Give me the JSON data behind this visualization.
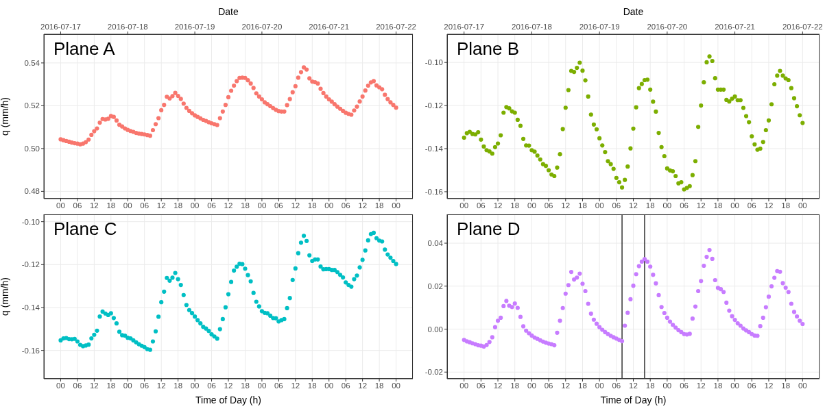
{
  "chart_data": [
    {
      "type": "scatter",
      "title": "Plane A",
      "ylabel": "q (mm/h)",
      "x2label": "Date",
      "marker": "circle",
      "grid": true,
      "x2lim": [
        "2016-07-16T18:00",
        "2016-07-22T06:00"
      ],
      "x2ticks": [
        "2016-07-17",
        "2016-07-18",
        "2016-07-19",
        "2016-07-20",
        "2016-07-21",
        "2016-07-22"
      ],
      "xlim": [
        -6,
        126
      ],
      "xticks": [
        {
          "value": 0,
          "label": "00"
        },
        {
          "value": 6,
          "label": "06"
        },
        {
          "value": 12,
          "label": "12"
        },
        {
          "value": 18,
          "label": "18"
        },
        {
          "value": 24,
          "label": "00"
        },
        {
          "value": 30,
          "label": "06"
        },
        {
          "value": 36,
          "label": "12"
        },
        {
          "value": 42,
          "label": "18"
        },
        {
          "value": 48,
          "label": "00"
        },
        {
          "value": 54,
          "label": "06"
        },
        {
          "value": 60,
          "label": "12"
        },
        {
          "value": 66,
          "label": "18"
        },
        {
          "value": 72,
          "label": "00"
        },
        {
          "value": 78,
          "label": "06"
        },
        {
          "value": 84,
          "label": "12"
        },
        {
          "value": 90,
          "label": "18"
        },
        {
          "value": 96,
          "label": "00"
        },
        {
          "value": 102,
          "label": "06"
        },
        {
          "value": 108,
          "label": "12"
        },
        {
          "value": 114,
          "label": "18"
        },
        {
          "value": 120,
          "label": "00"
        }
      ],
      "ylim": [
        0.4766,
        0.5534
      ],
      "yticks": [
        0.48,
        {
          "value": 0.5,
          "label": "0.50"
        },
        0.52,
        0.54
      ],
      "x": [
        0,
        1,
        2,
        3,
        4,
        5,
        6,
        7,
        8,
        9,
        10,
        11,
        12,
        13,
        14,
        15,
        16,
        17,
        18,
        19,
        20,
        21,
        22,
        23,
        24,
        25,
        26,
        27,
        28,
        29,
        30,
        31,
        32,
        33,
        34,
        35,
        36,
        37,
        38,
        39,
        40,
        41,
        42,
        43,
        44,
        45,
        46,
        47,
        48,
        49,
        50,
        51,
        52,
        53,
        54,
        55,
        56,
        57,
        58,
        59,
        60,
        61,
        62,
        63,
        64,
        65,
        66,
        67,
        68,
        69,
        70,
        71,
        72,
        73,
        74,
        75,
        76,
        77,
        78,
        79,
        80,
        81,
        82,
        83,
        84,
        85,
        86,
        87,
        88,
        89,
        90,
        91,
        92,
        93,
        94,
        95,
        96,
        97,
        98,
        99,
        100,
        101,
        102,
        103,
        104,
        105,
        106,
        107,
        108,
        109,
        110,
        111,
        112,
        113,
        114,
        115,
        116,
        117,
        118,
        119,
        120
      ],
      "series": [
        {
          "color": "#f8766d",
          "values": [
            0.5043,
            0.5039,
            0.5035,
            0.5032,
            0.5028,
            0.5025,
            0.5023,
            0.502,
            0.5023,
            0.503,
            0.5042,
            0.5064,
            0.5081,
            0.5094,
            0.5121,
            0.5138,
            0.5136,
            0.5139,
            0.5152,
            0.5148,
            0.5131,
            0.5111,
            0.5103,
            0.5094,
            0.5087,
            0.5082,
            0.5078,
            0.5073,
            0.507,
            0.5068,
            0.5066,
            0.5063,
            0.506,
            0.5086,
            0.5114,
            0.5142,
            0.5179,
            0.5204,
            0.5242,
            0.5234,
            0.5245,
            0.526,
            0.5246,
            0.5232,
            0.521,
            0.519,
            0.5176,
            0.5165,
            0.5155,
            0.5148,
            0.5141,
            0.5134,
            0.5129,
            0.5123,
            0.5118,
            0.5114,
            0.511,
            0.5142,
            0.5173,
            0.5204,
            0.524,
            0.527,
            0.5294,
            0.5315,
            0.533,
            0.5331,
            0.533,
            0.5319,
            0.5304,
            0.5283,
            0.5258,
            0.5243,
            0.523,
            0.5216,
            0.5207,
            0.5198,
            0.5189,
            0.5181,
            0.5175,
            0.5173,
            0.5173,
            0.5203,
            0.5231,
            0.5263,
            0.5291,
            0.5331,
            0.5357,
            0.5379,
            0.5369,
            0.5328,
            0.5313,
            0.531,
            0.5304,
            0.5279,
            0.5259,
            0.5243,
            0.523,
            0.5219,
            0.5207,
            0.5196,
            0.5186,
            0.5176,
            0.5167,
            0.5162,
            0.5158,
            0.5178,
            0.5196,
            0.522,
            0.5243,
            0.5271,
            0.5294,
            0.5309,
            0.5315,
            0.5295,
            0.5286,
            0.5277,
            0.5251,
            0.5231,
            0.5216,
            0.5204,
            0.5191
          ]
        }
      ]
    },
    {
      "type": "scatter",
      "title": "Plane B",
      "x2label": "Date",
      "marker": "circle",
      "grid": true,
      "x2lim": [
        "2016-07-16T18:00",
        "2016-07-22T06:00"
      ],
      "x2ticks": [
        "2016-07-17",
        "2016-07-18",
        "2016-07-19",
        "2016-07-20",
        "2016-07-21",
        "2016-07-22"
      ],
      "xlim": [
        -6,
        126
      ],
      "xticks": [
        {
          "value": 0,
          "label": "00"
        },
        {
          "value": 6,
          "label": "06"
        },
        {
          "value": 12,
          "label": "12"
        },
        {
          "value": 18,
          "label": "18"
        },
        {
          "value": 24,
          "label": "00"
        },
        {
          "value": 30,
          "label": "06"
        },
        {
          "value": 36,
          "label": "12"
        },
        {
          "value": 42,
          "label": "18"
        },
        {
          "value": 48,
          "label": "00"
        },
        {
          "value": 54,
          "label": "06"
        },
        {
          "value": 60,
          "label": "12"
        },
        {
          "value": 66,
          "label": "18"
        },
        {
          "value": 72,
          "label": "00"
        },
        {
          "value": 78,
          "label": "06"
        },
        {
          "value": 84,
          "label": "12"
        },
        {
          "value": 90,
          "label": "18"
        },
        {
          "value": 96,
          "label": "00"
        },
        {
          "value": 102,
          "label": "06"
        },
        {
          "value": 108,
          "label": "12"
        },
        {
          "value": 114,
          "label": "18"
        },
        {
          "value": 120,
          "label": "00"
        }
      ],
      "ylim": [
        -0.1632,
        -0.0869
      ],
      "yticks": [
        -0.16,
        -0.14,
        -0.12,
        {
          "value": -0.1,
          "label": "-0.10"
        }
      ],
      "x": [
        0,
        1,
        2,
        3,
        4,
        5,
        6,
        7,
        8,
        9,
        10,
        11,
        12,
        13,
        14,
        15,
        16,
        17,
        18,
        19,
        20,
        21,
        22,
        23,
        24,
        25,
        26,
        27,
        28,
        29,
        30,
        31,
        32,
        33,
        34,
        35,
        36,
        37,
        38,
        39,
        40,
        41,
        42,
        43,
        44,
        45,
        46,
        47,
        48,
        49,
        50,
        51,
        52,
        53,
        54,
        55,
        56,
        57,
        58,
        59,
        60,
        61,
        62,
        63,
        64,
        65,
        66,
        67,
        68,
        69,
        70,
        71,
        72,
        73,
        74,
        75,
        76,
        77,
        78,
        79,
        80,
        81,
        82,
        83,
        84,
        85,
        86,
        87,
        88,
        89,
        90,
        91,
        92,
        93,
        94,
        95,
        96,
        97,
        98,
        99,
        100,
        101,
        102,
        103,
        104,
        105,
        106,
        107,
        108,
        109,
        110,
        111,
        112,
        113,
        114,
        115,
        116,
        117,
        118,
        119,
        120
      ],
      "series": [
        {
          "color": "#7cae00",
          "values": [
            -0.1349,
            -0.1328,
            -0.1322,
            -0.1332,
            -0.1334,
            -0.1324,
            -0.1358,
            -0.139,
            -0.1407,
            -0.1413,
            -0.1423,
            -0.1393,
            -0.1376,
            -0.1338,
            -0.1233,
            -0.1207,
            -0.1213,
            -0.1227,
            -0.1233,
            -0.1266,
            -0.1294,
            -0.1355,
            -0.1385,
            -0.1386,
            -0.1407,
            -0.1414,
            -0.1432,
            -0.145,
            -0.1472,
            -0.148,
            -0.15,
            -0.152,
            -0.1527,
            -0.1488,
            -0.1426,
            -0.1309,
            -0.121,
            -0.1128,
            -0.1039,
            -0.1044,
            -0.1025,
            -0.1001,
            -0.1038,
            -0.1083,
            -0.1158,
            -0.1242,
            -0.1288,
            -0.131,
            -0.1352,
            -0.1385,
            -0.1416,
            -0.1458,
            -0.1472,
            -0.1494,
            -0.1536,
            -0.1556,
            -0.158,
            -0.1545,
            -0.1483,
            -0.1399,
            -0.1307,
            -0.1208,
            -0.1119,
            -0.11,
            -0.1082,
            -0.108,
            -0.1126,
            -0.1182,
            -0.1228,
            -0.1327,
            -0.1393,
            -0.1435,
            -0.1492,
            -0.1501,
            -0.1505,
            -0.1527,
            -0.1561,
            -0.1556,
            -0.1589,
            -0.1582,
            -0.1574,
            -0.1523,
            -0.1458,
            -0.1299,
            -0.12,
            -0.1092,
            -0.0999,
            -0.0972,
            -0.0993,
            -0.1073,
            -0.1126,
            -0.1126,
            -0.1126,
            -0.1174,
            -0.1181,
            -0.1168,
            -0.1158,
            -0.1175,
            -0.1175,
            -0.1211,
            -0.1249,
            -0.1277,
            -0.1343,
            -0.138,
            -0.1405,
            -0.14,
            -0.1369,
            -0.1314,
            -0.1269,
            -0.1194,
            -0.1101,
            -0.1061,
            -0.1039,
            -0.1061,
            -0.1074,
            -0.1082,
            -0.1119,
            -0.1166,
            -0.1203,
            -0.1245,
            -0.1281
          ]
        }
      ]
    },
    {
      "type": "scatter",
      "title": "Plane C",
      "xlabel": "Time of Day (h)",
      "ylabel": "q (mm/h)",
      "marker": "circle",
      "grid": true,
      "xlim": [
        -6,
        126
      ],
      "xticks": [
        {
          "value": 0,
          "label": "00"
        },
        {
          "value": 6,
          "label": "06"
        },
        {
          "value": 12,
          "label": "12"
        },
        {
          "value": 18,
          "label": "18"
        },
        {
          "value": 24,
          "label": "00"
        },
        {
          "value": 30,
          "label": "06"
        },
        {
          "value": 36,
          "label": "12"
        },
        {
          "value": 42,
          "label": "18"
        },
        {
          "value": 48,
          "label": "00"
        },
        {
          "value": 54,
          "label": "06"
        },
        {
          "value": 60,
          "label": "12"
        },
        {
          "value": 66,
          "label": "18"
        },
        {
          "value": 72,
          "label": "00"
        },
        {
          "value": 78,
          "label": "06"
        },
        {
          "value": 84,
          "label": "12"
        },
        {
          "value": 90,
          "label": "18"
        },
        {
          "value": 96,
          "label": "00"
        },
        {
          "value": 102,
          "label": "06"
        },
        {
          "value": 108,
          "label": "12"
        },
        {
          "value": 114,
          "label": "18"
        },
        {
          "value": 120,
          "label": "00"
        }
      ],
      "ylim": [
        -0.1732,
        -0.0966
      ],
      "yticks": [
        -0.16,
        -0.14,
        -0.12,
        {
          "value": -0.1,
          "label": "-0.10"
        }
      ],
      "x": [
        0,
        1,
        2,
        3,
        4,
        5,
        6,
        7,
        8,
        9,
        10,
        11,
        12,
        13,
        14,
        15,
        16,
        17,
        18,
        19,
        20,
        21,
        22,
        23,
        24,
        25,
        26,
        27,
        28,
        29,
        30,
        31,
        32,
        33,
        34,
        35,
        36,
        37,
        38,
        39,
        40,
        41,
        42,
        43,
        44,
        45,
        46,
        47,
        48,
        49,
        50,
        51,
        52,
        53,
        54,
        55,
        56,
        57,
        58,
        59,
        60,
        61,
        62,
        63,
        64,
        65,
        66,
        67,
        68,
        69,
        70,
        71,
        72,
        73,
        74,
        75,
        76,
        77,
        78,
        79,
        80,
        81,
        82,
        83,
        84,
        85,
        86,
        87,
        88,
        89,
        90,
        91,
        92,
        93,
        94,
        95,
        96,
        97,
        98,
        99,
        100,
        101,
        102,
        103,
        104,
        105,
        106,
        107,
        108,
        109,
        110,
        111,
        112,
        113,
        114,
        115,
        116,
        117,
        118,
        119,
        120
      ],
      "series": [
        {
          "color": "#00bfc4",
          "values": [
            -0.1553,
            -0.1544,
            -0.1542,
            -0.1547,
            -0.1548,
            -0.1546,
            -0.1558,
            -0.1574,
            -0.158,
            -0.1577,
            -0.1573,
            -0.1544,
            -0.1527,
            -0.1508,
            -0.1442,
            -0.1419,
            -0.1428,
            -0.1435,
            -0.1427,
            -0.1449,
            -0.1474,
            -0.1513,
            -0.1529,
            -0.1531,
            -0.1541,
            -0.1544,
            -0.1553,
            -0.1562,
            -0.1571,
            -0.1578,
            -0.1585,
            -0.1594,
            -0.1597,
            -0.1558,
            -0.1511,
            -0.1443,
            -0.1375,
            -0.1326,
            -0.1262,
            -0.1275,
            -0.1261,
            -0.1239,
            -0.1268,
            -0.1295,
            -0.1342,
            -0.1388,
            -0.1412,
            -0.1426,
            -0.1442,
            -0.1459,
            -0.1474,
            -0.149,
            -0.1498,
            -0.1509,
            -0.1525,
            -0.1535,
            -0.1545,
            -0.1501,
            -0.1454,
            -0.1399,
            -0.1338,
            -0.1281,
            -0.1228,
            -0.121,
            -0.1196,
            -0.1198,
            -0.1219,
            -0.1249,
            -0.1278,
            -0.1332,
            -0.1373,
            -0.1395,
            -0.1417,
            -0.1425,
            -0.1427,
            -0.1438,
            -0.1449,
            -0.145,
            -0.1465,
            -0.1459,
            -0.1454,
            -0.1403,
            -0.1356,
            -0.1272,
            -0.1218,
            -0.1147,
            -0.1098,
            -0.1066,
            -0.109,
            -0.1157,
            -0.1183,
            -0.1176,
            -0.1176,
            -0.1209,
            -0.1222,
            -0.1221,
            -0.1221,
            -0.1225,
            -0.1225,
            -0.1235,
            -0.1248,
            -0.126,
            -0.1283,
            -0.1295,
            -0.1303,
            -0.1268,
            -0.1251,
            -0.1213,
            -0.1178,
            -0.1134,
            -0.1087,
            -0.1058,
            -0.1052,
            -0.1077,
            -0.1088,
            -0.1092,
            -0.113,
            -0.1153,
            -0.1168,
            -0.1183,
            -0.1197
          ]
        }
      ]
    },
    {
      "type": "scatter",
      "title": "Plane D",
      "xlabel": "Time of Day (h)",
      "marker": "circle",
      "grid": true,
      "xlim": [
        -6,
        126
      ],
      "xticks": [
        {
          "value": 0,
          "label": "00"
        },
        {
          "value": 6,
          "label": "06"
        },
        {
          "value": 12,
          "label": "12"
        },
        {
          "value": 18,
          "label": "18"
        },
        {
          "value": 24,
          "label": "00"
        },
        {
          "value": 30,
          "label": "06"
        },
        {
          "value": 36,
          "label": "12"
        },
        {
          "value": 42,
          "label": "18"
        },
        {
          "value": 48,
          "label": "00"
        },
        {
          "value": 54,
          "label": "06"
        },
        {
          "value": 60,
          "label": "12"
        },
        {
          "value": 66,
          "label": "18"
        },
        {
          "value": 72,
          "label": "00"
        },
        {
          "value": 78,
          "label": "06"
        },
        {
          "value": 84,
          "label": "12"
        },
        {
          "value": 90,
          "label": "18"
        },
        {
          "value": 96,
          "label": "00"
        },
        {
          "value": 102,
          "label": "06"
        },
        {
          "value": 108,
          "label": "12"
        },
        {
          "value": 114,
          "label": "18"
        },
        {
          "value": 120,
          "label": "00"
        }
      ],
      "ylim": [
        -0.0231,
        0.0534
      ],
      "yticks": [
        -0.02,
        {
          "value": 0,
          "label": "0.00"
        },
        0.02,
        0.04
      ],
      "ref_lines": [
        {
          "axis": "x",
          "value": 56,
          "color": "#000000"
        },
        {
          "axis": "x",
          "value": 64,
          "color": "#000000"
        }
      ],
      "x": [
        0,
        1,
        2,
        3,
        4,
        5,
        6,
        7,
        8,
        9,
        10,
        11,
        12,
        13,
        14,
        15,
        16,
        17,
        18,
        19,
        20,
        21,
        22,
        23,
        24,
        25,
        26,
        27,
        28,
        29,
        30,
        31,
        32,
        33,
        34,
        35,
        36,
        37,
        38,
        39,
        40,
        41,
        42,
        43,
        44,
        45,
        46,
        47,
        48,
        49,
        50,
        51,
        52,
        53,
        54,
        55,
        56,
        57,
        58,
        59,
        60,
        61,
        62,
        63,
        64,
        65,
        66,
        67,
        68,
        69,
        70,
        71,
        72,
        73,
        74,
        75,
        76,
        77,
        78,
        79,
        80,
        81,
        82,
        83,
        84,
        85,
        86,
        87,
        88,
        89,
        90,
        91,
        92,
        93,
        94,
        95,
        96,
        97,
        98,
        99,
        100,
        101,
        102,
        103,
        104,
        105,
        106,
        107,
        108,
        109,
        110,
        111,
        112,
        113,
        114,
        115,
        116,
        117,
        118,
        119,
        120
      ],
      "series": [
        {
          "color": "#c77cff",
          "values": [
            -0.005,
            -0.0057,
            -0.0061,
            -0.0066,
            -0.007,
            -0.0075,
            -0.0077,
            -0.0081,
            -0.0074,
            -0.006,
            -0.0038,
            0.0009,
            0.0039,
            0.0053,
            0.0107,
            0.0131,
            0.0109,
            0.0103,
            0.0119,
            0.0099,
            0.0057,
            0.0013,
            -0.0007,
            -0.0019,
            -0.003,
            -0.0039,
            -0.0045,
            -0.0052,
            -0.0058,
            -0.0063,
            -0.0067,
            -0.007,
            -0.0075,
            -0.0017,
            0.0039,
            0.0098,
            0.0165,
            0.0205,
            0.0266,
            0.0231,
            0.024,
            0.0258,
            0.0211,
            0.0177,
            0.0118,
            0.0072,
            0.0044,
            0.0025,
            0.0009,
            -0.0003,
            -0.0014,
            -0.0023,
            -0.0031,
            -0.0038,
            -0.0044,
            -0.005,
            -0.0056,
            0.0016,
            0.0076,
            0.0139,
            0.0202,
            0.0256,
            0.0293,
            0.0314,
            0.0326,
            0.0314,
            0.0291,
            0.0253,
            0.0213,
            0.0158,
            0.0103,
            0.0075,
            0.0053,
            0.0035,
            0.002,
            0.0007,
            -0.0005,
            -0.0014,
            -0.0023,
            -0.0025,
            -0.0022,
            0.0049,
            0.0105,
            0.0177,
            0.0224,
            0.0295,
            0.0336,
            0.0368,
            0.0327,
            0.0228,
            0.0192,
            0.0186,
            0.0173,
            0.0123,
            0.0086,
            0.006,
            0.0043,
            0.0027,
            0.0016,
            0.0003,
            -0.0006,
            -0.0014,
            -0.0023,
            -0.003,
            -0.0031,
            0.0014,
            0.0053,
            0.0102,
            0.0151,
            0.0199,
            0.0239,
            0.027,
            0.0267,
            0.0214,
            0.0193,
            0.0173,
            0.0118,
            0.008,
            0.0059,
            0.0039,
            0.0024
          ]
        }
      ]
    }
  ]
}
